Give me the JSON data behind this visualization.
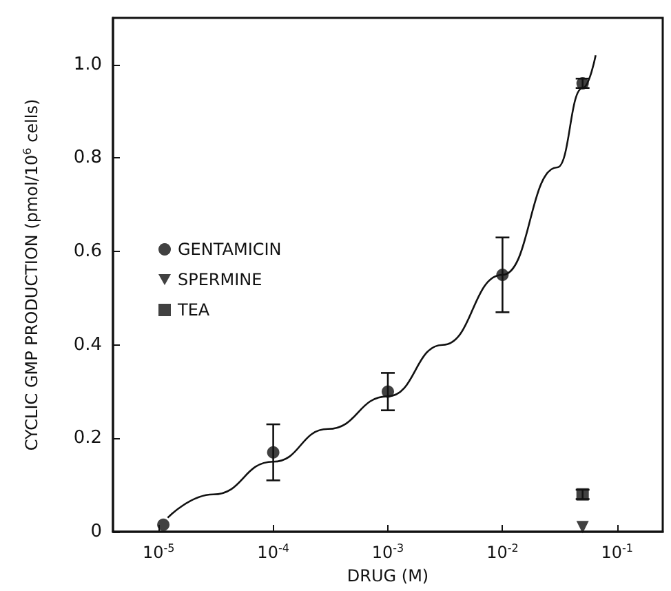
{
  "chart_data": {
    "type": "scatter",
    "xlabel": "DRUG (M)",
    "ylabel": "CYCLIC GMP PRODUCTION (pmol/10$^{6}$ cells)",
    "log": "x",
    "xlim": [
      4e-06,
      0.25
    ],
    "xticks": [
      {
        "value": 1e-05,
        "label": "10$^{-5}$"
      },
      {
        "value": 0.0001,
        "label": "10$^{-4}$"
      },
      {
        "value": 0.001,
        "label": "10$^{-3}$"
      },
      {
        "value": 0.01,
        "label": "10$^{-2}$"
      },
      {
        "value": 0.1,
        "label": "10$^{-1}$"
      }
    ],
    "ylim": [
      0,
      1.1
    ],
    "yticks": [
      0,
      0.2,
      0.4,
      0.6,
      0.8,
      {
        "value": 1,
        "label": "1.0"
      }
    ],
    "grid": false,
    "legend": "left",
    "series": [
      {
        "name": "GENTAMICIN",
        "marker": "circle",
        "color": "#111111",
        "x": [
          1.1e-05,
          0.0001,
          0.001,
          0.01,
          0.05
        ],
        "values": [
          0.015,
          0.17,
          0.3,
          0.55,
          0.96
        ],
        "errors": [
          null,
          [
            0.11,
            0.23
          ],
          [
            0.26,
            0.34
          ],
          [
            0.47,
            0.63
          ],
          [
            0.95,
            0.97
          ]
        ]
      },
      {
        "name": "SPERMINE",
        "marker": "triangle",
        "color": "#111111",
        "x": [
          0.05
        ],
        "values": [
          0.01
        ]
      },
      {
        "name": "TEA",
        "marker": "square",
        "color": "#111111",
        "x": [
          0.05
        ],
        "values": [
          0.08
        ],
        "errors": [
          [
            0.07,
            0.09
          ]
        ]
      },
      {
        "type": "line",
        "marker": "none",
        "color": "#111111",
        "x": [
          1.2e-05,
          3e-05,
          0.0001,
          0.0003,
          0.001,
          0.003,
          0.01,
          0.03,
          0.05,
          0.065
        ],
        "values": [
          0.03,
          0.08,
          0.15,
          0.22,
          0.29,
          0.4,
          0.55,
          0.78,
          0.95,
          1.02
        ]
      }
    ]
  }
}
